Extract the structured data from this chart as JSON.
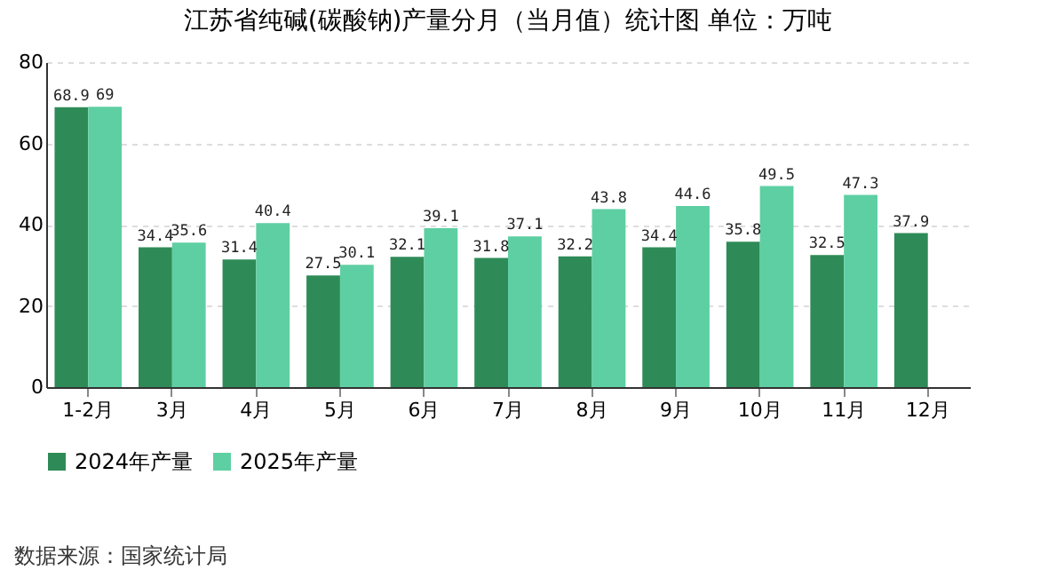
{
  "chart_data": {
    "type": "bar",
    "title": "江苏省纯碱(碳酸钠)产量分月（当月值）统计图 单位：万吨",
    "categories": [
      "1-2月",
      "3月",
      "4月",
      "5月",
      "6月",
      "7月",
      "8月",
      "9月",
      "10月",
      "11月",
      "12月"
    ],
    "series": [
      {
        "name": "2024年产量",
        "color": "#2e8b57",
        "values": [
          68.9,
          34.4,
          31.4,
          27.5,
          32.1,
          31.8,
          32.2,
          34.4,
          35.8,
          32.5,
          37.9
        ]
      },
      {
        "name": "2025年产量",
        "color": "#5ecfa3",
        "values": [
          69,
          35.6,
          40.4,
          30.1,
          39.1,
          37.1,
          43.8,
          44.6,
          49.5,
          47.3,
          null
        ]
      }
    ],
    "ylim": [
      0,
      80
    ],
    "yticks": [
      0,
      20,
      40,
      60,
      80
    ],
    "grid": "y",
    "legend": "bottom",
    "data_labels": true,
    "annotations": [
      "数据来源：国家统计局"
    ]
  }
}
